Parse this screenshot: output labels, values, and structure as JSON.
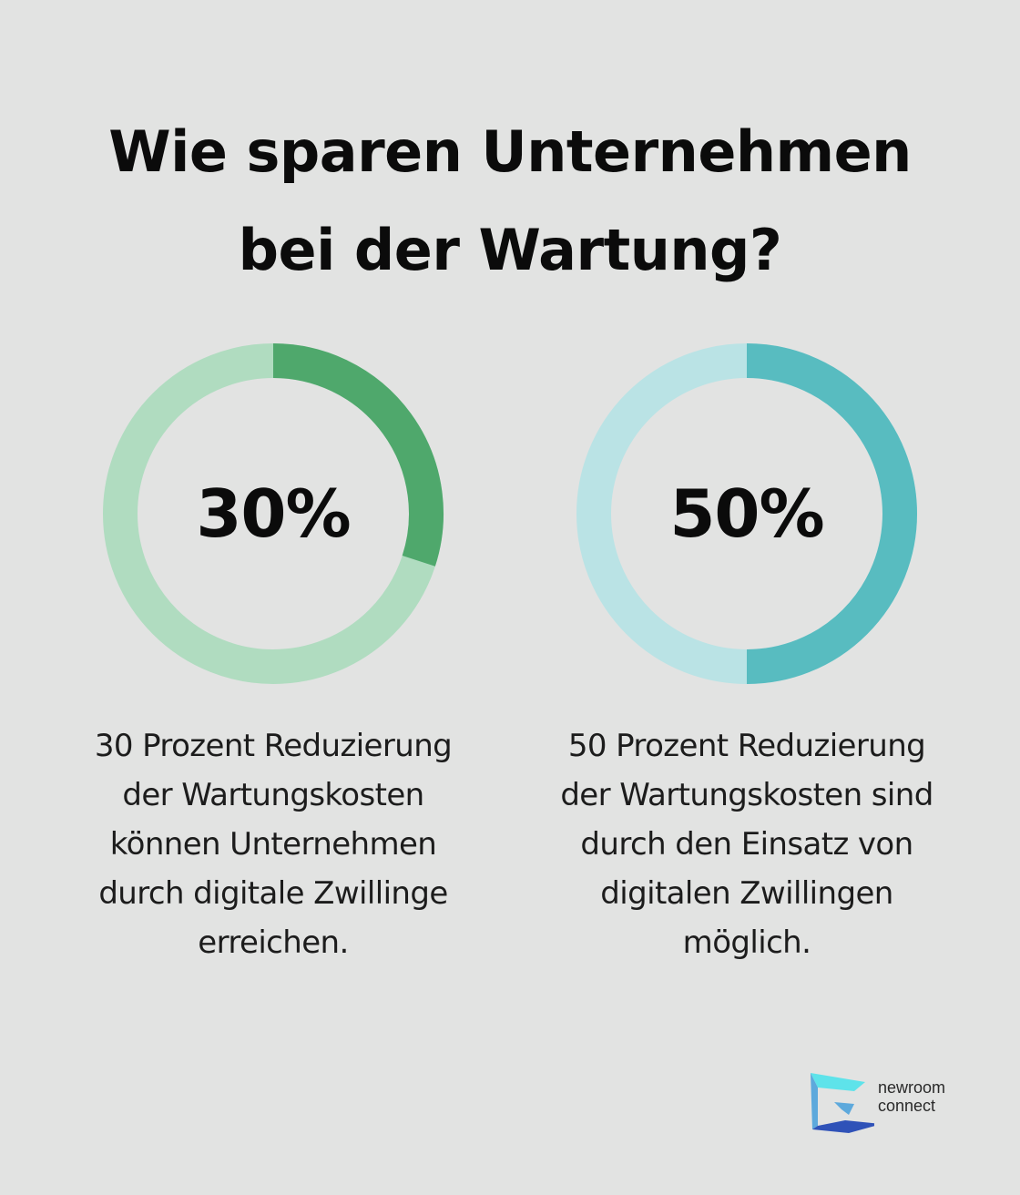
{
  "title": {
    "line1": "Wie sparen Unternehmen",
    "line2": "bei der Wartung?"
  },
  "chart_data": [
    {
      "type": "pie",
      "variant": "donut",
      "value": 30,
      "max": 100,
      "label": "30%",
      "caption": "30 Prozent Reduzierung der Wartungskosten können Unternehmen durch digitale Zwillinge erreichen.",
      "caption_lines": [
        "30 Prozent Reduzierung",
        "der Wartungskosten",
        "können Unternehmen",
        "durch digitale Zwillinge",
        "erreichen."
      ],
      "colors": {
        "filled": "#4fa86c",
        "track": "#b0dcc0"
      }
    },
    {
      "type": "pie",
      "variant": "donut",
      "value": 50,
      "max": 100,
      "label": "50%",
      "caption": "50 Prozent Reduzierung der Wartungskosten sind durch den Einsatz von digitalen Zwillingen möglich.",
      "caption_lines": [
        "50 Prozent Reduzierung",
        "der Wartungskosten sind",
        "durch den Einsatz von",
        "digitalen Zwillingen",
        "möglich."
      ],
      "colors": {
        "filled": "#58bcc0",
        "track": "#bae3e5"
      }
    }
  ],
  "brand": {
    "line1": "newroom",
    "line2": "connect",
    "icon": "newroom-connect-logo-icon",
    "colors": {
      "light": "#5ee3ea",
      "mid": "#5da9dc",
      "dark": "#2f52b8"
    }
  }
}
